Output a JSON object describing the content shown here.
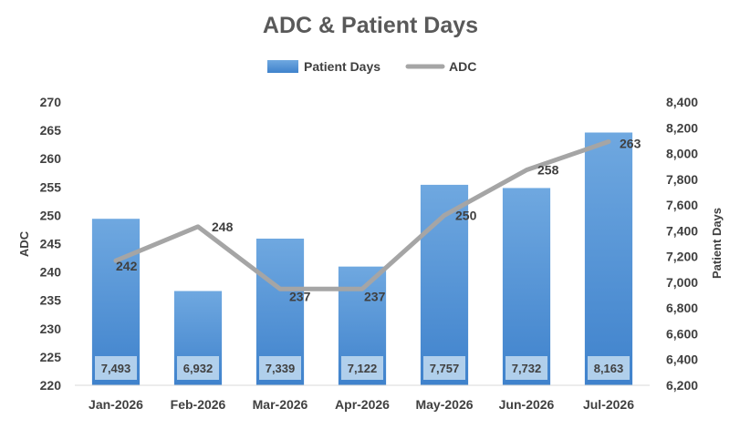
{
  "chart_data": {
    "type": "bar",
    "title": "ADC & Patient Days",
    "categories": [
      "Jan-2026",
      "Feb-2026",
      "Mar-2026",
      "Apr-2026",
      "May-2026",
      "Jun-2026",
      "Jul-2026"
    ],
    "series": [
      {
        "name": "Patient Days",
        "type": "bar",
        "axis": "right",
        "values": [
          7493,
          6932,
          7339,
          7122,
          7757,
          7732,
          8163
        ],
        "labels": [
          "7,493",
          "6,932",
          "7,339",
          "7,122",
          "7,757",
          "7,732",
          "8,163"
        ],
        "color": "#5B9BD5"
      },
      {
        "name": "ADC",
        "type": "line",
        "axis": "left",
        "values": [
          242,
          248,
          237,
          237,
          250,
          258,
          263
        ],
        "labels": [
          "242",
          "248",
          "237",
          "237",
          "250",
          "258",
          "263"
        ],
        "color": "#A5A5A5"
      }
    ],
    "y_left": {
      "label": "ADC",
      "range": [
        220,
        270
      ],
      "ticks": [
        "220",
        "225",
        "230",
        "235",
        "240",
        "245",
        "250",
        "255",
        "260",
        "265",
        "270"
      ]
    },
    "y_right": {
      "label": "Patient Days",
      "range": [
        6200,
        8400
      ],
      "ticks": [
        "6,200",
        "6,400",
        "6,600",
        "6,800",
        "7,000",
        "7,200",
        "7,400",
        "7,600",
        "7,800",
        "8,000",
        "8,200",
        "8,400"
      ]
    },
    "legend": "top-center",
    "grid": false
  }
}
